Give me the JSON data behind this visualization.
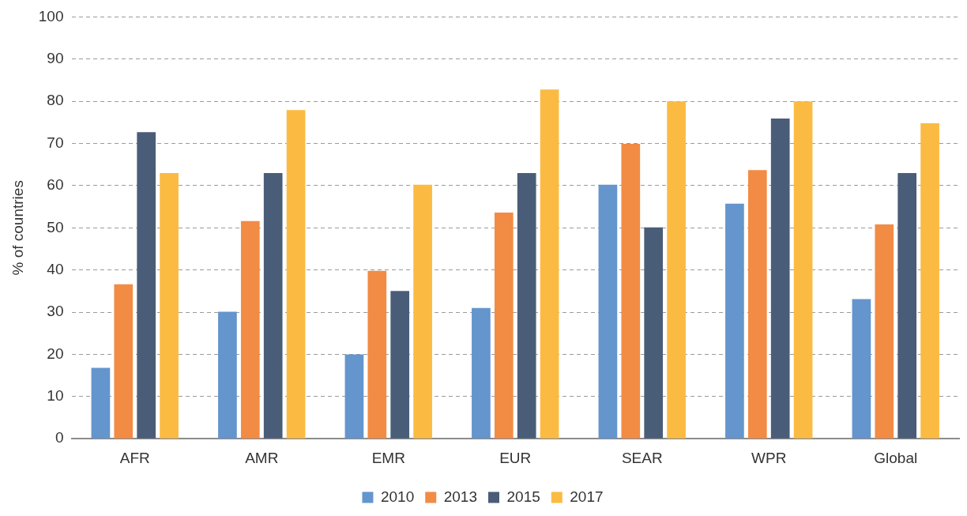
{
  "chart_data": {
    "type": "bar",
    "ylabel": "% of countries",
    "categories": [
      "AFR",
      "AMR",
      "EMR",
      "EUR",
      "SEAR",
      "WPR",
      "Global"
    ],
    "series": [
      {
        "name": "2010",
        "color": "#6495cd",
        "values": [
          16.8,
          30.1,
          20,
          31,
          60.2,
          55.7,
          33.1
        ]
      },
      {
        "name": "2013",
        "color": "#f28b44",
        "values": [
          36.6,
          51.6,
          39.8,
          53.6,
          69.9,
          63.7,
          50.8
        ]
      },
      {
        "name": "2015",
        "color": "#4a5d78",
        "values": [
          72.7,
          63,
          35,
          63,
          50.1,
          75.9,
          63
        ]
      },
      {
        "name": "2017",
        "color": "#fbbb43",
        "values": [
          63,
          77.9,
          60.2,
          82.8,
          80,
          80,
          74.8
        ]
      }
    ],
    "ylim": [
      0,
      100
    ],
    "yticks": [
      0,
      10,
      20,
      30,
      40,
      50,
      60,
      70,
      80,
      90,
      100
    ],
    "grid": "y",
    "legend": "bottom"
  }
}
